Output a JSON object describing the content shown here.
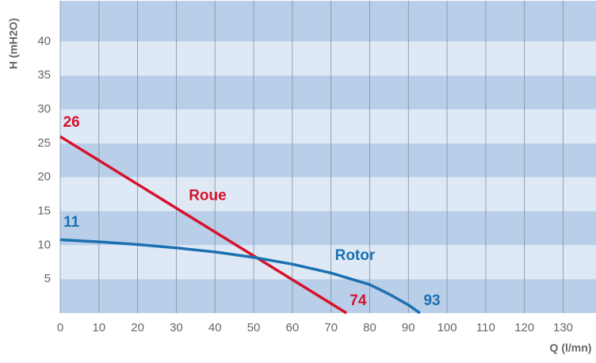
{
  "chart_data": {
    "type": "line",
    "xlabel": "Q (l/mn)",
    "ylabel": "H (mH2O)",
    "xlim": [
      0,
      138.5
    ],
    "ylim": [
      0,
      46
    ],
    "xticks": [
      0,
      10,
      20,
      30,
      40,
      50,
      60,
      70,
      80,
      90,
      100,
      110,
      120,
      130
    ],
    "yticks": [
      5,
      10,
      15,
      20,
      25,
      30,
      35,
      40
    ],
    "grid": true,
    "band_colors": [
      "#b9cfe9",
      "#dfe9f6"
    ],
    "series": [
      {
        "name": "Roue",
        "color": "#d5132b",
        "x": [
          0,
          74
        ],
        "values": [
          26,
          0
        ]
      },
      {
        "name": "Rotor",
        "color": "#1b70b0",
        "x": [
          0,
          10,
          20,
          30,
          40,
          50,
          60,
          70,
          80,
          85,
          90,
          93
        ],
        "values": [
          10.8,
          10.5,
          10.1,
          9.6,
          9,
          8.2,
          7.2,
          5.9,
          4.2,
          2.8,
          1.2,
          0
        ]
      }
    ],
    "annotations": [
      {
        "text": "26",
        "x": 2.9,
        "y": 28,
        "color": "#d5132b"
      },
      {
        "text": "11",
        "x": 2.9,
        "y": 13.3,
        "color": "#1b70b0"
      },
      {
        "text": "Roue",
        "x": 38.1,
        "y": 17.2,
        "color": "#d5132b"
      },
      {
        "text": "Rotor",
        "x": 76.2,
        "y": 8.4,
        "color": "#1b70b0"
      },
      {
        "text": "74",
        "x": 77,
        "y": 1.75,
        "color": "#d5132b"
      },
      {
        "text": "93",
        "x": 96.1,
        "y": 1.75,
        "color": "#1b70b0"
      }
    ]
  }
}
